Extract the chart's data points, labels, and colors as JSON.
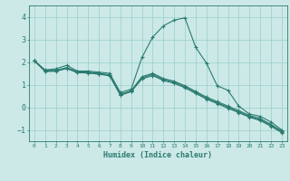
{
  "title": "",
  "xlabel": "Humidex (Indice chaleur)",
  "xlim": [
    -0.5,
    23.5
  ],
  "ylim": [
    -1.5,
    4.5
  ],
  "yticks": [
    -1,
    0,
    1,
    2,
    3,
    4
  ],
  "xticks": [
    0,
    1,
    2,
    3,
    4,
    5,
    6,
    7,
    8,
    9,
    10,
    11,
    12,
    13,
    14,
    15,
    16,
    17,
    18,
    19,
    20,
    21,
    22,
    23
  ],
  "background_color": "#cce9e7",
  "grid_color": "#99ceca",
  "line_color": "#2a7a70",
  "lines": [
    {
      "x": [
        0,
        1,
        2,
        3,
        4,
        5,
        6,
        7,
        8,
        9,
        10,
        11,
        12,
        13,
        14,
        15,
        16,
        17,
        18,
        19,
        20,
        21,
        22,
        23
      ],
      "y": [
        2.05,
        1.65,
        1.7,
        1.85,
        1.6,
        1.6,
        1.55,
        1.5,
        0.65,
        0.8,
        2.2,
        3.1,
        3.6,
        3.85,
        3.95,
        2.65,
        1.95,
        0.95,
        0.75,
        0.05,
        -0.3,
        -0.4,
        -0.65,
        -1.0
      ]
    },
    {
      "x": [
        0,
        1,
        2,
        3,
        4,
        5,
        6,
        7,
        8,
        9,
        10,
        11,
        12,
        13,
        14,
        15,
        16,
        17,
        18,
        19,
        20,
        21,
        22,
        23
      ],
      "y": [
        2.05,
        1.63,
        1.63,
        1.75,
        1.57,
        1.55,
        1.5,
        1.43,
        0.57,
        0.73,
        1.35,
        1.5,
        1.27,
        1.15,
        0.95,
        0.7,
        0.45,
        0.25,
        0.05,
        -0.15,
        -0.36,
        -0.5,
        -0.76,
        -1.05
      ]
    },
    {
      "x": [
        0,
        1,
        2,
        3,
        4,
        5,
        6,
        7,
        8,
        9,
        10,
        11,
        12,
        13,
        14,
        15,
        16,
        17,
        18,
        19,
        20,
        21,
        22,
        23
      ],
      "y": [
        2.05,
        1.6,
        1.61,
        1.73,
        1.55,
        1.53,
        1.48,
        1.41,
        0.55,
        0.71,
        1.3,
        1.45,
        1.22,
        1.1,
        0.9,
        0.65,
        0.4,
        0.2,
        0.0,
        -0.2,
        -0.4,
        -0.55,
        -0.8,
        -1.08
      ]
    },
    {
      "x": [
        0,
        1,
        2,
        3,
        4,
        5,
        6,
        7,
        8,
        9,
        10,
        11,
        12,
        13,
        14,
        15,
        16,
        17,
        18,
        19,
        20,
        21,
        22,
        23
      ],
      "y": [
        2.05,
        1.58,
        1.59,
        1.71,
        1.53,
        1.51,
        1.46,
        1.39,
        0.53,
        0.69,
        1.25,
        1.4,
        1.18,
        1.06,
        0.86,
        0.61,
        0.36,
        0.16,
        -0.04,
        -0.24,
        -0.44,
        -0.59,
        -0.84,
        -1.12
      ]
    }
  ]
}
